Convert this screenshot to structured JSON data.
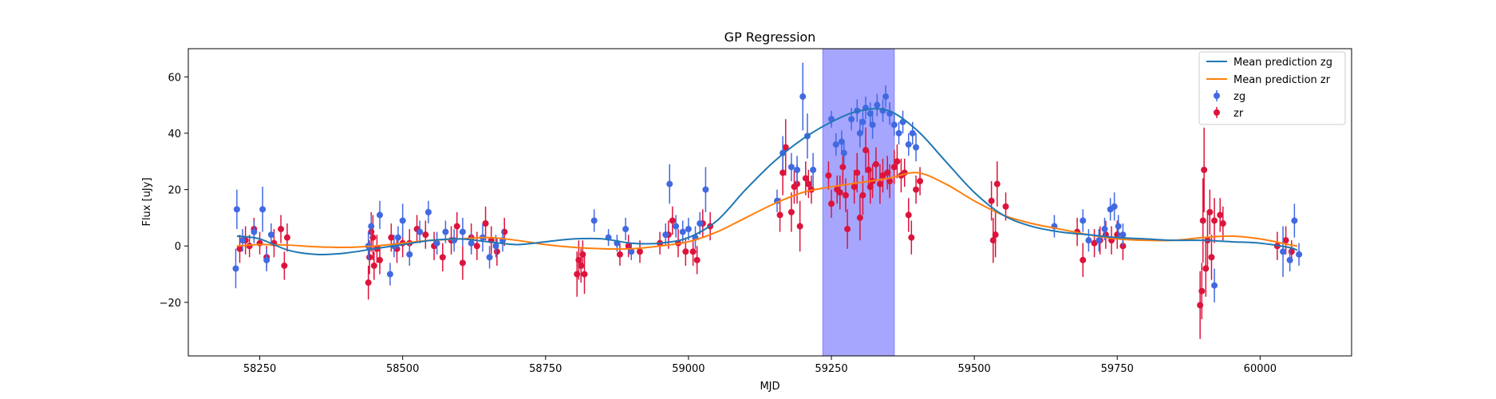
{
  "chart_data": {
    "type": "scatter",
    "title": "GP Regression",
    "xlabel": "MJD",
    "ylabel": "Flux [uJy]",
    "xlim": [
      58125,
      60160
    ],
    "ylim": [
      -39,
      70
    ],
    "xticks": [
      58250,
      58500,
      58750,
      59000,
      59250,
      59500,
      59750,
      60000
    ],
    "yticks": [
      -20,
      0,
      20,
      40,
      60
    ],
    "grid": false,
    "legend_position": "top-right",
    "shaded_region": {
      "x_range": [
        59235,
        59360
      ],
      "color": "#a6a6ff"
    },
    "series": [
      {
        "name": "Mean prediction zg",
        "kind": "line",
        "color": "#1f77b4",
        "x": [
          58210,
          58250,
          58300,
          58350,
          58400,
          58450,
          58500,
          58550,
          58600,
          58650,
          58700,
          58750,
          58800,
          58850,
          58900,
          58950,
          59000,
          59050,
          59100,
          59150,
          59200,
          59250,
          59300,
          59350,
          59400,
          59450,
          59500,
          59550,
          59600,
          59650,
          59700,
          59750,
          59800,
          59850,
          59900,
          59950,
          60000,
          60050,
          60065
        ],
        "y": [
          3.5,
          2.5,
          -1.5,
          -3,
          -2.5,
          -1,
          0.5,
          2,
          2.5,
          1.5,
          0.5,
          1.5,
          2.5,
          2.5,
          1,
          1,
          3,
          9,
          20,
          30,
          38,
          44,
          48,
          48,
          41,
          30,
          19,
          11,
          7,
          5,
          4,
          3,
          2.5,
          2,
          2,
          1.5,
          1,
          -0.5,
          -1.5
        ]
      },
      {
        "name": "Mean prediction zr",
        "kind": "line",
        "color": "#ff7f0e",
        "x": [
          58210,
          58250,
          58300,
          58350,
          58400,
          58450,
          58500,
          58550,
          58600,
          58650,
          58700,
          58750,
          58800,
          58850,
          58900,
          58950,
          59000,
          59050,
          59100,
          59150,
          59200,
          59250,
          59300,
          59350,
          59400,
          59450,
          59500,
          59550,
          59600,
          59650,
          59700,
          59750,
          59800,
          59850,
          59900,
          59950,
          60000,
          60050,
          60065
        ],
        "y": [
          0,
          0.5,
          0.3,
          -0.3,
          -0.5,
          0,
          1,
          2,
          2.5,
          3,
          2,
          0.5,
          -0.5,
          -1,
          -1,
          0,
          1.5,
          5,
          10,
          15,
          19,
          21,
          22.5,
          24,
          26,
          22,
          16,
          11,
          8,
          6,
          4,
          2.5,
          2,
          2,
          3,
          3.5,
          2.5,
          0.5,
          0
        ]
      },
      {
        "name": "zg",
        "kind": "errorbar",
        "color": "#4169e1",
        "points": [
          [
            58208,
            -8,
            7
          ],
          [
            58210,
            13,
            7
          ],
          [
            58220,
            2,
            4
          ],
          [
            58240,
            5,
            4
          ],
          [
            58255,
            13,
            8
          ],
          [
            58262,
            -5,
            4
          ],
          [
            58270,
            4,
            4
          ],
          [
            58440,
            0,
            5
          ],
          [
            58445,
            7,
            4
          ],
          [
            58460,
            11,
            5
          ],
          [
            58478,
            -10,
            4
          ],
          [
            58485,
            0,
            4
          ],
          [
            58492,
            3,
            4
          ],
          [
            58500,
            9,
            6
          ],
          [
            58512,
            -3,
            4
          ],
          [
            58530,
            5,
            4
          ],
          [
            58545,
            12,
            4
          ],
          [
            58560,
            1,
            4
          ],
          [
            58575,
            5,
            4
          ],
          [
            58590,
            2,
            4
          ],
          [
            58605,
            5,
            5
          ],
          [
            58620,
            1,
            4
          ],
          [
            58640,
            3,
            5
          ],
          [
            58652,
            -4,
            4
          ],
          [
            58663,
            0,
            4
          ],
          [
            58675,
            2,
            4
          ],
          [
            58835,
            9,
            4
          ],
          [
            58860,
            3,
            3
          ],
          [
            58875,
            1,
            3
          ],
          [
            58890,
            6,
            4
          ],
          [
            58900,
            -2,
            3
          ],
          [
            58960,
            4,
            4
          ],
          [
            58967,
            22,
            7
          ],
          [
            58978,
            7,
            4
          ],
          [
            58990,
            5,
            4
          ],
          [
            59000,
            6,
            4
          ],
          [
            59012,
            3,
            4
          ],
          [
            59020,
            8,
            4
          ],
          [
            59030,
            20,
            8
          ],
          [
            59155,
            16,
            4
          ],
          [
            59165,
            33,
            6
          ],
          [
            59180,
            28,
            5
          ],
          [
            59190,
            27,
            5
          ],
          [
            59200,
            53,
            12
          ],
          [
            59208,
            39,
            8
          ],
          [
            59218,
            27,
            6
          ],
          [
            59250,
            45,
            3
          ],
          [
            59258,
            36,
            4
          ],
          [
            59268,
            37,
            4
          ],
          [
            59272,
            33,
            4
          ],
          [
            59285,
            45,
            4
          ],
          [
            59295,
            48,
            4
          ],
          [
            59300,
            40,
            5
          ],
          [
            59305,
            44,
            4
          ],
          [
            59310,
            49,
            4
          ],
          [
            59318,
            47,
            4
          ],
          [
            59322,
            43,
            5
          ],
          [
            59330,
            50,
            4
          ],
          [
            59340,
            48,
            4
          ],
          [
            59345,
            53,
            4
          ],
          [
            59352,
            47,
            4
          ],
          [
            59360,
            43,
            4
          ],
          [
            59368,
            40,
            4
          ],
          [
            59375,
            44,
            4
          ],
          [
            59385,
            36,
            4
          ],
          [
            59392,
            40,
            4
          ],
          [
            59398,
            35,
            5
          ],
          [
            59640,
            7,
            4
          ],
          [
            59690,
            9,
            4
          ],
          [
            59700,
            2,
            4
          ],
          [
            59718,
            2,
            4
          ],
          [
            59728,
            6,
            4
          ],
          [
            59738,
            13,
            4
          ],
          [
            59745,
            14,
            5
          ],
          [
            59752,
            7,
            4
          ],
          [
            59760,
            4,
            4
          ],
          [
            59920,
            -14,
            6
          ],
          [
            60040,
            -2,
            9
          ],
          [
            60052,
            -5,
            4
          ],
          [
            60060,
            9,
            6
          ],
          [
            60068,
            -3,
            4
          ]
        ]
      },
      {
        "name": "zr",
        "kind": "errorbar",
        "color": "#dc143c",
        "points": [
          [
            58215,
            -1,
            5
          ],
          [
            58225,
            2,
            5
          ],
          [
            58232,
            0,
            4
          ],
          [
            58240,
            6,
            4
          ],
          [
            58250,
            1,
            4
          ],
          [
            58262,
            -4,
            4
          ],
          [
            58275,
            1,
            5
          ],
          [
            58287,
            6,
            5
          ],
          [
            58293,
            -7,
            5
          ],
          [
            58298,
            3,
            5
          ],
          [
            58440,
            -13,
            6
          ],
          [
            58442,
            -4,
            6
          ],
          [
            58445,
            5,
            7
          ],
          [
            58448,
            3,
            8
          ],
          [
            58450,
            -7,
            5
          ],
          [
            58455,
            -1,
            5
          ],
          [
            58460,
            -5,
            5
          ],
          [
            58480,
            3,
            5
          ],
          [
            58490,
            -1,
            5
          ],
          [
            58500,
            1,
            5
          ],
          [
            58512,
            1,
            5
          ],
          [
            58525,
            6,
            5
          ],
          [
            58540,
            4,
            5
          ],
          [
            58555,
            0,
            5
          ],
          [
            58570,
            -4,
            5
          ],
          [
            58585,
            2,
            5
          ],
          [
            58595,
            7,
            5
          ],
          [
            58605,
            -6,
            6
          ],
          [
            58620,
            3,
            5
          ],
          [
            58630,
            0,
            5
          ],
          [
            58645,
            8,
            6
          ],
          [
            58655,
            2,
            5
          ],
          [
            58665,
            -2,
            5
          ],
          [
            58678,
            5,
            5
          ],
          [
            58805,
            -10,
            8
          ],
          [
            58808,
            -5,
            7
          ],
          [
            58812,
            -7,
            6
          ],
          [
            58815,
            -3,
            5
          ],
          [
            58818,
            -10,
            7
          ],
          [
            58880,
            -3,
            4
          ],
          [
            58895,
            0,
            4
          ],
          [
            58915,
            -2,
            4
          ],
          [
            58950,
            1,
            4
          ],
          [
            58965,
            4,
            5
          ],
          [
            58972,
            9,
            5
          ],
          [
            58982,
            1,
            5
          ],
          [
            58995,
            -2,
            5
          ],
          [
            59008,
            -2,
            5
          ],
          [
            59015,
            -5,
            5
          ],
          [
            59025,
            8,
            5
          ],
          [
            59038,
            7,
            5
          ],
          [
            59160,
            11,
            6
          ],
          [
            59165,
            26,
            8
          ],
          [
            59170,
            35,
            10
          ],
          [
            59180,
            12,
            7
          ],
          [
            59185,
            21,
            6
          ],
          [
            59190,
            22,
            7
          ],
          [
            59195,
            7,
            9
          ],
          [
            59205,
            24,
            6
          ],
          [
            59210,
            22,
            5
          ],
          [
            59215,
            20,
            5
          ],
          [
            59245,
            25,
            5
          ],
          [
            59250,
            15,
            5
          ],
          [
            59260,
            20,
            5
          ],
          [
            59265,
            19,
            6
          ],
          [
            59270,
            28,
            6
          ],
          [
            59275,
            18,
            6
          ],
          [
            59278,
            6,
            7
          ],
          [
            59290,
            21,
            6
          ],
          [
            59295,
            26,
            7
          ],
          [
            59300,
            10,
            8
          ],
          [
            59305,
            18,
            7
          ],
          [
            59310,
            34,
            8
          ],
          [
            59315,
            27,
            7
          ],
          [
            59318,
            21,
            6
          ],
          [
            59322,
            23,
            6
          ],
          [
            59328,
            29,
            6
          ],
          [
            59335,
            22,
            7
          ],
          [
            59340,
            25,
            6
          ],
          [
            59348,
            26,
            6
          ],
          [
            59352,
            23,
            6
          ],
          [
            59360,
            28,
            6
          ],
          [
            59365,
            30,
            6
          ],
          [
            59372,
            25,
            6
          ],
          [
            59378,
            26,
            5
          ],
          [
            59385,
            11,
            6
          ],
          [
            59390,
            3,
            6
          ],
          [
            59398,
            20,
            5
          ],
          [
            59405,
            23,
            5
          ],
          [
            59530,
            16,
            7
          ],
          [
            59533,
            2,
            8
          ],
          [
            59537,
            4,
            8
          ],
          [
            59540,
            22,
            8
          ],
          [
            59555,
            14,
            5
          ],
          [
            59680,
            5,
            5
          ],
          [
            59690,
            -5,
            6
          ],
          [
            59710,
            1,
            5
          ],
          [
            59720,
            2,
            5
          ],
          [
            59730,
            4,
            5
          ],
          [
            59740,
            2,
            5
          ],
          [
            59750,
            4,
            5
          ],
          [
            59760,
            0,
            5
          ],
          [
            59895,
            -21,
            12
          ],
          [
            59898,
            -16,
            10
          ],
          [
            59900,
            9,
            15
          ],
          [
            59902,
            27,
            15
          ],
          [
            59905,
            -8,
            10
          ],
          [
            59908,
            2,
            10
          ],
          [
            59912,
            12,
            8
          ],
          [
            59915,
            -4,
            8
          ],
          [
            59920,
            9,
            8
          ],
          [
            59930,
            11,
            6
          ],
          [
            59935,
            8,
            6
          ],
          [
            60030,
            0,
            5
          ],
          [
            60045,
            2,
            5
          ],
          [
            60055,
            -2,
            4
          ]
        ]
      }
    ]
  }
}
